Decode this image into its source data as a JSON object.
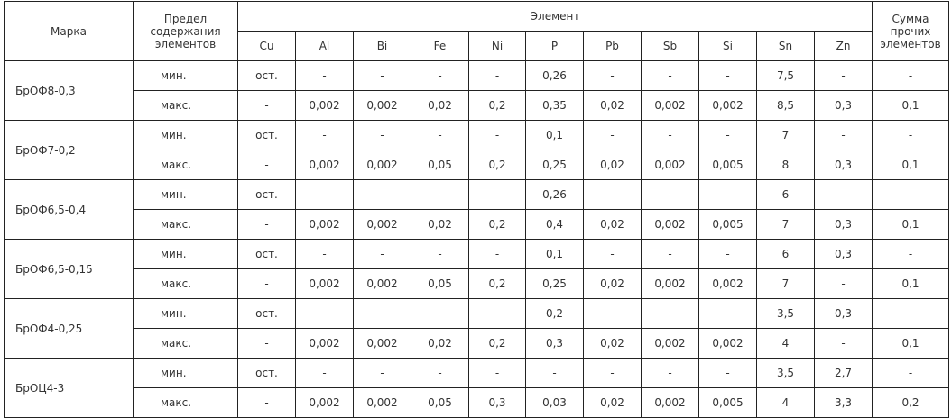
{
  "header": {
    "mark": "Марка",
    "limit": "Предел содержания элементов",
    "element": "Элемент",
    "others": "Сумма прочих элементов",
    "elements": [
      "Cu",
      "Al",
      "Bi",
      "Fe",
      "Ni",
      "P",
      "Pb",
      "Sb",
      "Si",
      "Sn",
      "Zn"
    ]
  },
  "rows": [
    {
      "mark": "БрОФ8-0,3",
      "min": {
        "label": "мин.",
        "values": [
          "ост.",
          "-",
          "-",
          "-",
          "-",
          "0,26",
          "-",
          "-",
          "-",
          "7,5",
          "-",
          "-"
        ]
      },
      "max": {
        "label": "макс.",
        "values": [
          "-",
          "0,002",
          "0,002",
          "0,02",
          "0,2",
          "0,35",
          "0,02",
          "0,002",
          "0,002",
          "8,5",
          "0,3",
          "0,1"
        ]
      }
    },
    {
      "mark": "БрОФ7-0,2",
      "min": {
        "label": "мин.",
        "values": [
          "ост.",
          "-",
          "-",
          "-",
          "-",
          "0,1",
          "-",
          "-",
          "-",
          "7",
          "-",
          "-"
        ]
      },
      "max": {
        "label": "макс.",
        "values": [
          "-",
          "0,002",
          "0,002",
          "0,05",
          "0,2",
          "0,25",
          "0,02",
          "0,002",
          "0,005",
          "8",
          "0,3",
          "0,1"
        ]
      }
    },
    {
      "mark": "БрОФ6,5-0,4",
      "min": {
        "label": "мин.",
        "values": [
          "ост.",
          "-",
          "-",
          "-",
          "-",
          "0,26",
          "-",
          "-",
          "-",
          "6",
          "-",
          "-"
        ]
      },
      "max": {
        "label": "макс.",
        "values": [
          "-",
          "0,002",
          "0,002",
          "0,02",
          "0,2",
          "0,4",
          "0,02",
          "0,002",
          "0,005",
          "7",
          "0,3",
          "0,1"
        ]
      }
    },
    {
      "mark": "БрОФ6,5-0,15",
      "min": {
        "label": "мин.",
        "values": [
          "ост.",
          "-",
          "-",
          "-",
          "-",
          "0,1",
          "-",
          "-",
          "-",
          "6",
          "0,3",
          "-"
        ]
      },
      "max": {
        "label": "макс.",
        "values": [
          "-",
          "0,002",
          "0,002",
          "0,05",
          "0,2",
          "0,25",
          "0,02",
          "0,002",
          "0,002",
          "7",
          "-",
          "0,1"
        ]
      }
    },
    {
      "mark": "БрОФ4-0,25",
      "min": {
        "label": "мин.",
        "values": [
          "ост.",
          "-",
          "-",
          "-",
          "-",
          "0,2",
          "-",
          "-",
          "-",
          "3,5",
          "0,3",
          "-"
        ]
      },
      "max": {
        "label": "макс.",
        "values": [
          "-",
          "0,002",
          "0,002",
          "0,02",
          "0,2",
          "0,3",
          "0,02",
          "0,002",
          "0,002",
          "4",
          "-",
          "0,1"
        ]
      }
    },
    {
      "mark": "БрОЦ4-3",
      "min": {
        "label": "мин.",
        "values": [
          "ост.",
          "-",
          "-",
          "-",
          "-",
          "-",
          "-",
          "-",
          "-",
          "3,5",
          "2,7",
          "-"
        ]
      },
      "max": {
        "label": "макс.",
        "values": [
          "-",
          "0,002",
          "0,002",
          "0,05",
          "0,3",
          "0,03",
          "0,02",
          "0,002",
          "0,005",
          "4",
          "3,3",
          "0,2"
        ]
      }
    }
  ]
}
